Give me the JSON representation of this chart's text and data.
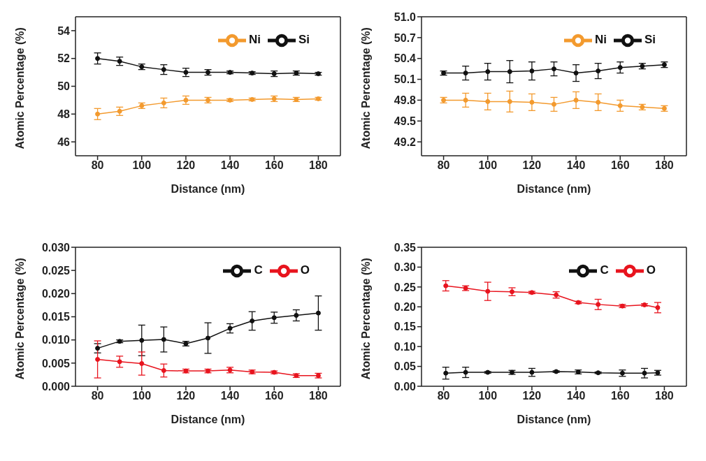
{
  "chart_data": [
    {
      "type": "line",
      "x": [
        80,
        90,
        100,
        110,
        120,
        130,
        140,
        150,
        160,
        170,
        180
      ],
      "xlabel": "Distance (nm)",
      "ylabel": "Atomic Percentage (%)",
      "xlim": [
        70,
        190
      ],
      "xticks": [
        80,
        100,
        120,
        140,
        160,
        180
      ],
      "ylim": [
        45,
        55
      ],
      "yticks": [
        46,
        48,
        50,
        52,
        54
      ],
      "legend": "top right",
      "marker": "circle",
      "grid": false,
      "series": [
        {
          "name": "Si",
          "color": "#111111",
          "values": [
            52.0,
            51.8,
            51.4,
            51.2,
            51.0,
            51.0,
            51.0,
            50.95,
            50.9,
            50.95,
            50.9
          ],
          "errors": [
            0.4,
            0.3,
            0.2,
            0.35,
            0.3,
            0.2,
            0.1,
            0.1,
            0.2,
            0.15,
            0.1
          ]
        },
        {
          "name": "Ni",
          "color": "#f39a2e",
          "values": [
            48.0,
            48.2,
            48.6,
            48.8,
            49.0,
            49.0,
            49.0,
            49.05,
            49.1,
            49.05,
            49.1
          ],
          "errors": [
            0.4,
            0.3,
            0.2,
            0.35,
            0.3,
            0.2,
            0.1,
            0.1,
            0.2,
            0.15,
            0.1
          ]
        }
      ]
    },
    {
      "type": "line",
      "x": [
        80,
        90,
        100,
        110,
        120,
        130,
        140,
        150,
        160,
        170,
        180
      ],
      "xlabel": "Distance (nm)",
      "ylabel": "Atomic Percentage (%)",
      "xlim": [
        70,
        190
      ],
      "xticks": [
        80,
        100,
        120,
        140,
        160,
        180
      ],
      "ylim": [
        49.0,
        51.0
      ],
      "yticks": [
        {
          "value": 49.2,
          "label": "49.2"
        },
        {
          "value": 49.5,
          "label": "49.5"
        },
        {
          "value": 49.8,
          "label": "49.8"
        },
        {
          "value": 50.1,
          "label": "50.1"
        },
        {
          "value": 50.4,
          "label": "50.4"
        },
        {
          "value": 50.7,
          "label": "50.7"
        },
        {
          "value": 51.0,
          "label": "51.0"
        }
      ],
      "legend": "top right",
      "marker": "circle",
      "grid": false,
      "series": [
        {
          "name": "Si",
          "color": "#111111",
          "values": [
            50.19,
            50.19,
            50.21,
            50.21,
            50.22,
            50.25,
            50.19,
            50.22,
            50.27,
            50.29,
            50.31
          ],
          "errors": [
            0.03,
            0.1,
            0.12,
            0.16,
            0.13,
            0.1,
            0.12,
            0.11,
            0.08,
            0.04,
            0.04
          ]
        },
        {
          "name": "Ni",
          "color": "#f39a2e",
          "values": [
            49.8,
            49.8,
            49.78,
            49.78,
            49.77,
            49.74,
            49.8,
            49.77,
            49.72,
            49.7,
            49.68
          ],
          "errors": [
            0.04,
            0.1,
            0.12,
            0.15,
            0.12,
            0.1,
            0.12,
            0.12,
            0.08,
            0.04,
            0.04
          ]
        }
      ]
    },
    {
      "type": "line",
      "x": [
        80,
        90,
        100,
        110,
        120,
        130,
        140,
        150,
        160,
        170,
        180
      ],
      "xlabel": "Distance (nm)",
      "ylabel": "Atomic Percentage (%)",
      "xlim": [
        70,
        190
      ],
      "xticks": [
        80,
        100,
        120,
        140,
        160,
        180
      ],
      "ylim": [
        0,
        0.03
      ],
      "yticks": [
        {
          "value": 0,
          "label": "0.000"
        },
        {
          "value": 0.005,
          "label": "0.005"
        },
        {
          "value": 0.01,
          "label": "0.010"
        },
        {
          "value": 0.015,
          "label": "0.015"
        },
        {
          "value": 0.02,
          "label": "0.020"
        },
        {
          "value": 0.025,
          "label": "0.025"
        },
        {
          "value": 0.03,
          "label": "0.030"
        }
      ],
      "legend": "top right",
      "marker": "circle",
      "grid": false,
      "series": [
        {
          "name": "C",
          "color": "#111111",
          "values": [
            0.0082,
            0.0097,
            0.0099,
            0.0101,
            0.0092,
            0.0104,
            0.0125,
            0.0141,
            0.0148,
            0.0153,
            0.0158
          ],
          "errors": [
            0.001,
            0.0003,
            0.0033,
            0.0027,
            0.0005,
            0.0033,
            0.001,
            0.002,
            0.0012,
            0.0012,
            0.0037
          ]
        },
        {
          "name": "O",
          "color": "#e8141e",
          "values": [
            0.0058,
            0.0053,
            0.0049,
            0.0034,
            0.0033,
            0.0033,
            0.0035,
            0.0031,
            0.003,
            0.0023,
            0.0023
          ],
          "errors": [
            0.004,
            0.0012,
            0.0025,
            0.0014,
            0.0004,
            0.0004,
            0.0006,
            0.0004,
            0.0003,
            0.0004,
            0.0005
          ]
        }
      ]
    },
    {
      "type": "line",
      "x": [
        81,
        90,
        100,
        111,
        120,
        131,
        141,
        150,
        161,
        171,
        177
      ],
      "xlabel": "Distance (nm)",
      "ylabel": "Atomic Percentage (%)",
      "xlim": [
        70,
        190
      ],
      "xticks": [
        80,
        100,
        120,
        140,
        160,
        180
      ],
      "ylim": [
        0,
        0.35
      ],
      "yticks": [
        {
          "value": 0,
          "label": "0.00"
        },
        {
          "value": 0.05,
          "label": "0.05"
        },
        {
          "value": 0.1,
          "label": "0.10"
        },
        {
          "value": 0.15,
          "label": "0.15"
        },
        {
          "value": 0.2,
          "label": "0.20"
        },
        {
          "value": 0.25,
          "label": "0.25"
        },
        {
          "value": 0.3,
          "label": "0.30"
        },
        {
          "value": 0.35,
          "label": "0.35"
        }
      ],
      "legend": "top right",
      "marker": "circle",
      "grid": false,
      "series": [
        {
          "name": "C",
          "color": "#111111",
          "values": [
            0.033,
            0.035,
            0.035,
            0.035,
            0.035,
            0.037,
            0.036,
            0.034,
            0.033,
            0.033,
            0.034
          ],
          "errors": [
            0.015,
            0.013,
            0.002,
            0.005,
            0.01,
            0.002,
            0.005,
            0.002,
            0.008,
            0.012,
            0.006
          ]
        },
        {
          "name": "O",
          "color": "#e8141e",
          "values": [
            0.253,
            0.247,
            0.239,
            0.238,
            0.236,
            0.23,
            0.211,
            0.206,
            0.202,
            0.205,
            0.198
          ],
          "errors": [
            0.013,
            0.006,
            0.023,
            0.01,
            0.003,
            0.008,
            0.003,
            0.013,
            0.004,
            0.003,
            0.013
          ]
        }
      ]
    }
  ]
}
